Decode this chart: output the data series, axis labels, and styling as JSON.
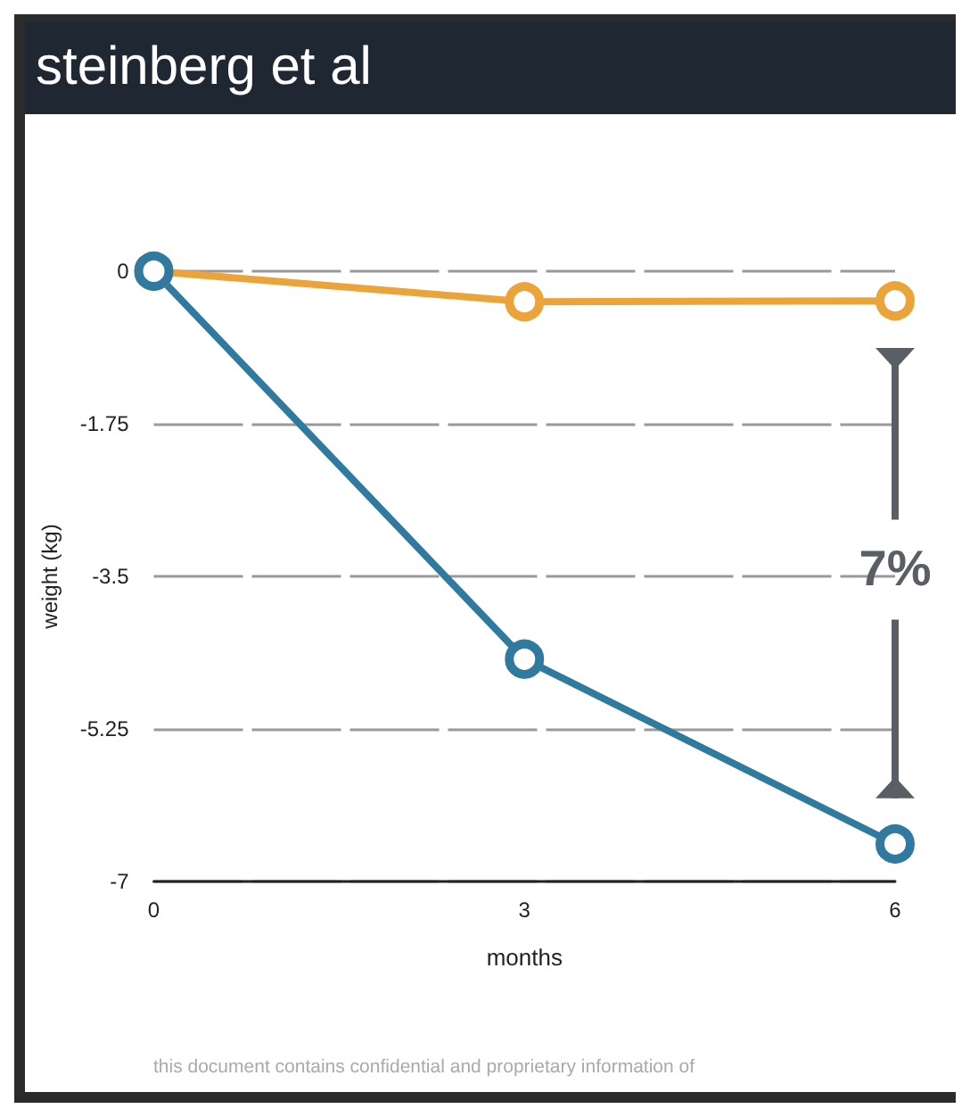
{
  "chart_data": {
    "type": "line",
    "title": "steinberg et al",
    "xlabel": "months",
    "ylabel": "weight (kg)",
    "x": [
      0,
      3,
      6
    ],
    "series": [
      {
        "color": "#eaa43a",
        "values": [
          0,
          -0.35,
          -0.34
        ]
      },
      {
        "color": "#2f7a9e",
        "values": [
          0,
          -4.45,
          -6.57
        ]
      }
    ],
    "xlim": [
      0,
      6
    ],
    "xticks": [
      0,
      3,
      6
    ],
    "ylim": [
      -7,
      0
    ],
    "yticks": [
      0,
      -1.75,
      -3.5,
      -5.25,
      -7
    ],
    "grid": "y",
    "marker": "circle",
    "line_style": "solid",
    "annotations": [
      "7%",
      "this document contains confidential and proprietary information of"
    ]
  }
}
